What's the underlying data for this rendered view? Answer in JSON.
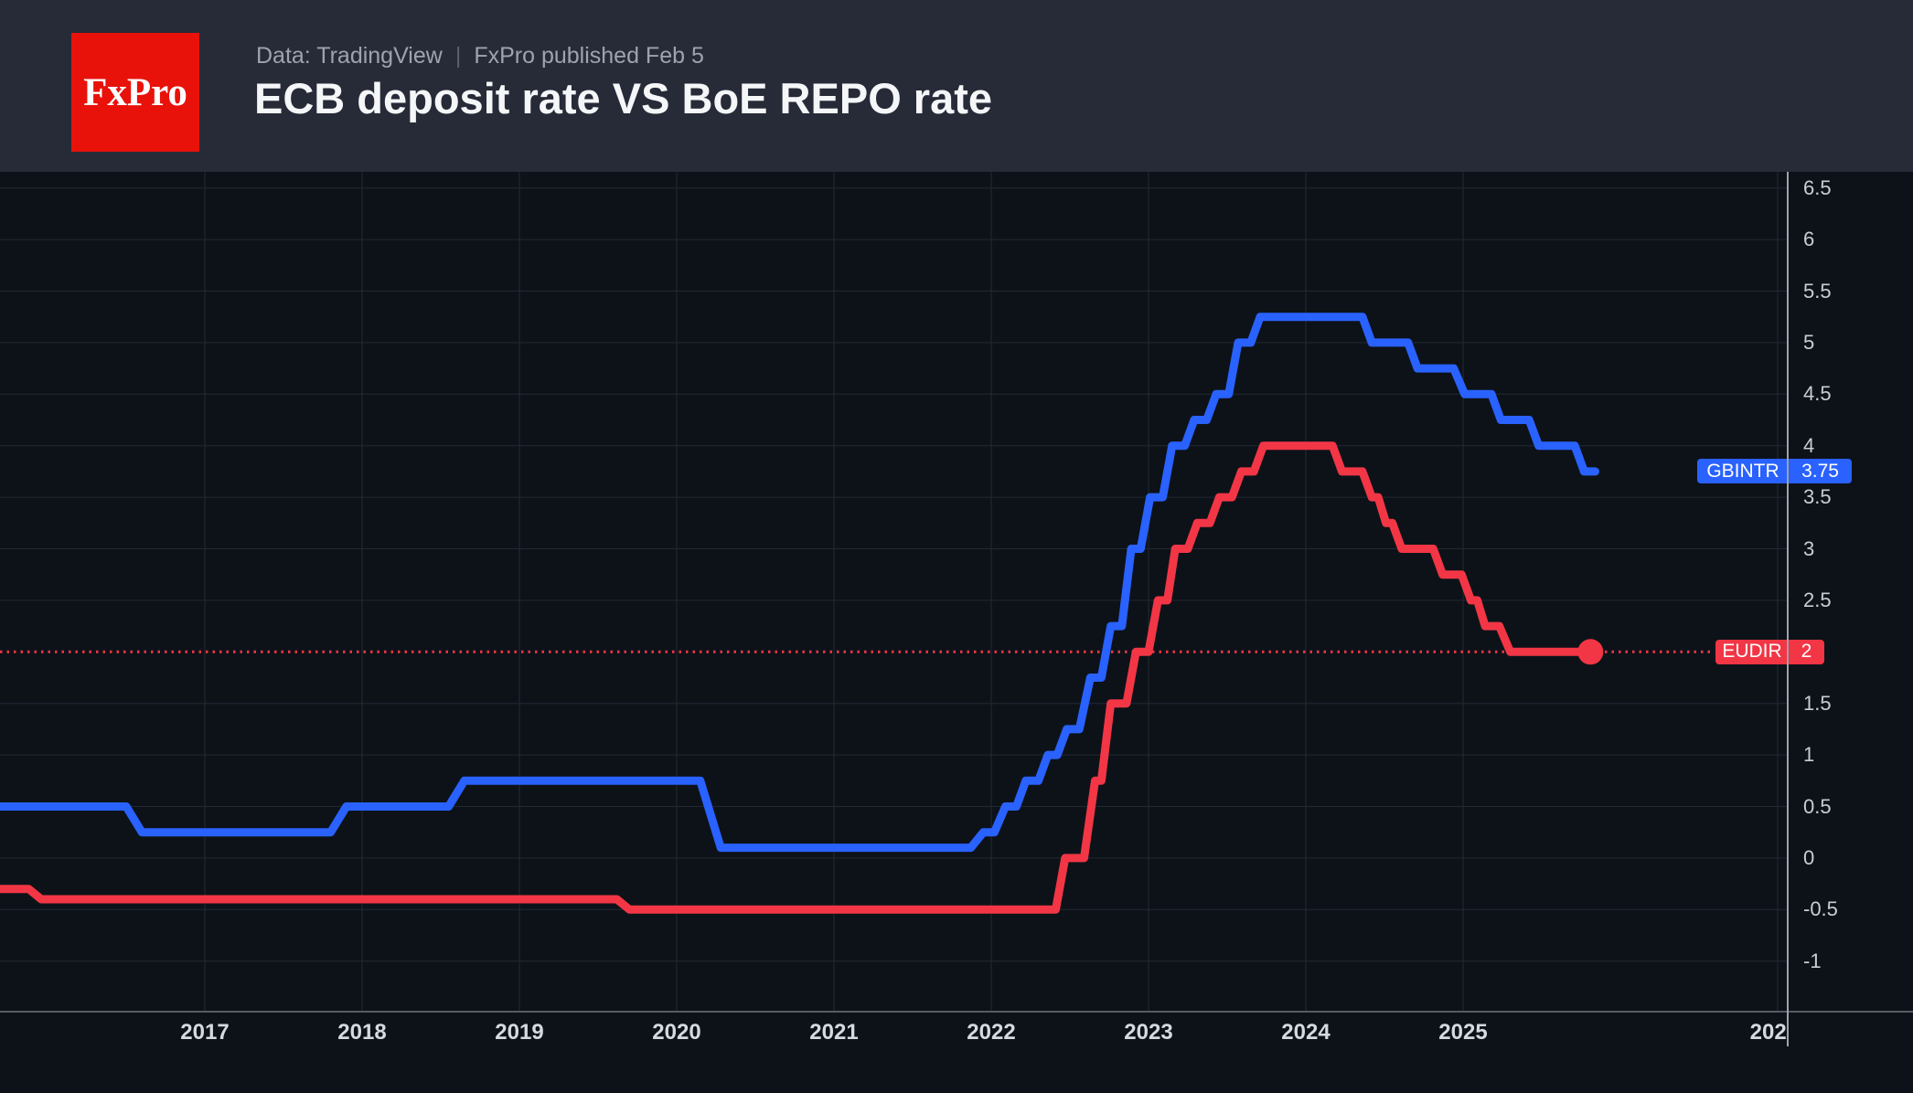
{
  "header": {
    "logo_text": "FxPro",
    "source": "Data: TradingView",
    "separator": "|",
    "published": "FxPro published Feb 5",
    "title": "ECB deposit rate VS BoE REPO rate"
  },
  "colors": {
    "header_bg": "#272b38",
    "chart_bg": "#0d1219",
    "logo_bg": "#e8120b",
    "grid": "#232933",
    "time_axis_line": "#565b65",
    "price_axis_line": "#9ea2ac",
    "price_label_color": "#c9cdd6",
    "time_label_color": "#d6d9e0",
    "gbintr_blue": "#2962ff",
    "eudir_red": "#f23645"
  },
  "chart_data": {
    "type": "line",
    "title": "ECB deposit rate VS BoE REPO rate",
    "grid": true,
    "legend_position": "none",
    "x_axis": {
      "unit": "year",
      "visible_range": [
        2015.7,
        2027.07
      ],
      "gridline_years": [
        2017,
        2018,
        2019,
        2020,
        2021,
        2022,
        2023,
        2024,
        2025,
        2027
      ],
      "labels": [
        {
          "t": 2017,
          "text": "2017"
        },
        {
          "t": 2018,
          "text": "2018"
        },
        {
          "t": 2019,
          "text": "2019"
        },
        {
          "t": 2020,
          "text": "2020"
        },
        {
          "t": 2021,
          "text": "2021"
        },
        {
          "t": 2022,
          "text": "2022"
        },
        {
          "t": 2023,
          "text": "2023"
        },
        {
          "t": 2024,
          "text": "2024"
        },
        {
          "t": 2025,
          "text": "2025"
        },
        {
          "t": 2026.94,
          "text": "202"
        }
      ]
    },
    "y_axis": {
      "side": "right",
      "visible_range": [
        -1.66,
        6.66
      ],
      "ticks": [
        {
          "v": 6.5,
          "label": "6.5"
        },
        {
          "v": 6,
          "label": "6"
        },
        {
          "v": 5.5,
          "label": "5.5"
        },
        {
          "v": 5,
          "label": "5"
        },
        {
          "v": 4.5,
          "label": "4.5"
        },
        {
          "v": 4,
          "label": "4"
        },
        {
          "v": 3.5,
          "label": "3.5"
        },
        {
          "v": 3,
          "label": "3"
        },
        {
          "v": 2.5,
          "label": "2.5"
        },
        {
          "v": 1.5,
          "label": "1.5"
        },
        {
          "v": 1,
          "label": "1"
        },
        {
          "v": 0.5,
          "label": "0.5"
        },
        {
          "v": 0,
          "label": "0"
        },
        {
          "v": -0.5,
          "label": "-0.5"
        },
        {
          "v": -1,
          "label": "-1"
        }
      ]
    },
    "series": [
      {
        "name": "GBINTR",
        "description": "BoE REPO rate",
        "color": "#2962ff",
        "last_value": 3.75,
        "badge": {
          "label": "GBINTR",
          "value": "3.75"
        },
        "end_dot": false,
        "points": [
          [
            2015.7,
            0.5
          ],
          [
            2016.5,
            0.5
          ],
          [
            2016.6,
            0.25
          ],
          [
            2017.8,
            0.25
          ],
          [
            2017.9,
            0.5
          ],
          [
            2018.55,
            0.5
          ],
          [
            2018.65,
            0.75
          ],
          [
            2020.15,
            0.75
          ],
          [
            2020.28,
            0.1
          ],
          [
            2021.87,
            0.1
          ],
          [
            2021.95,
            0.25
          ],
          [
            2022.02,
            0.25
          ],
          [
            2022.09,
            0.5
          ],
          [
            2022.16,
            0.5
          ],
          [
            2022.22,
            0.75
          ],
          [
            2022.3,
            0.75
          ],
          [
            2022.36,
            1.0
          ],
          [
            2022.42,
            1.0
          ],
          [
            2022.48,
            1.25
          ],
          [
            2022.56,
            1.25
          ],
          [
            2022.63,
            1.75
          ],
          [
            2022.7,
            1.75
          ],
          [
            2022.76,
            2.25
          ],
          [
            2022.83,
            2.25
          ],
          [
            2022.89,
            3.0
          ],
          [
            2022.95,
            3.0
          ],
          [
            2023.01,
            3.5
          ],
          [
            2023.09,
            3.5
          ],
          [
            2023.15,
            4.0
          ],
          [
            2023.23,
            4.0
          ],
          [
            2023.29,
            4.25
          ],
          [
            2023.37,
            4.25
          ],
          [
            2023.43,
            4.5
          ],
          [
            2023.51,
            4.5
          ],
          [
            2023.57,
            5.0
          ],
          [
            2023.65,
            5.0
          ],
          [
            2023.71,
            5.25
          ],
          [
            2024.36,
            5.25
          ],
          [
            2024.42,
            5.0
          ],
          [
            2024.65,
            5.0
          ],
          [
            2024.71,
            4.75
          ],
          [
            2024.94,
            4.75
          ],
          [
            2025.01,
            4.5
          ],
          [
            2025.18,
            4.5
          ],
          [
            2025.24,
            4.25
          ],
          [
            2025.42,
            4.25
          ],
          [
            2025.48,
            4.0
          ],
          [
            2025.71,
            4.0
          ],
          [
            2025.77,
            3.75
          ],
          [
            2025.84,
            3.75
          ]
        ]
      },
      {
        "name": "EUDIR",
        "description": "ECB deposit rate",
        "color": "#f23645",
        "last_value": 2,
        "badge": {
          "label": "EUDIR",
          "value": "2"
        },
        "end_dot": true,
        "dotted_guide_value": 2,
        "points": [
          [
            2015.7,
            -0.3
          ],
          [
            2015.88,
            -0.3
          ],
          [
            2015.96,
            -0.4
          ],
          [
            2019.62,
            -0.4
          ],
          [
            2019.7,
            -0.5
          ],
          [
            2022.41,
            -0.5
          ],
          [
            2022.47,
            0.0
          ],
          [
            2022.59,
            0.0
          ],
          [
            2022.66,
            0.75
          ],
          [
            2022.7,
            0.75
          ],
          [
            2022.76,
            1.5
          ],
          [
            2022.86,
            1.5
          ],
          [
            2022.92,
            2.0
          ],
          [
            2023.0,
            2.0
          ],
          [
            2023.06,
            2.5
          ],
          [
            2023.12,
            2.5
          ],
          [
            2023.17,
            3.0
          ],
          [
            2023.25,
            3.0
          ],
          [
            2023.31,
            3.25
          ],
          [
            2023.39,
            3.25
          ],
          [
            2023.45,
            3.5
          ],
          [
            2023.53,
            3.5
          ],
          [
            2023.59,
            3.75
          ],
          [
            2023.67,
            3.75
          ],
          [
            2023.73,
            4.0
          ],
          [
            2024.17,
            4.0
          ],
          [
            2024.23,
            3.75
          ],
          [
            2024.36,
            3.75
          ],
          [
            2024.42,
            3.5
          ],
          [
            2024.46,
            3.5
          ],
          [
            2024.51,
            3.25
          ],
          [
            2024.55,
            3.25
          ],
          [
            2024.61,
            3.0
          ],
          [
            2024.81,
            3.0
          ],
          [
            2024.87,
            2.75
          ],
          [
            2024.99,
            2.75
          ],
          [
            2025.05,
            2.5
          ],
          [
            2025.09,
            2.5
          ],
          [
            2025.14,
            2.25
          ],
          [
            2025.23,
            2.25
          ],
          [
            2025.3,
            2.0
          ],
          [
            2025.81,
            2.0
          ]
        ]
      }
    ]
  }
}
